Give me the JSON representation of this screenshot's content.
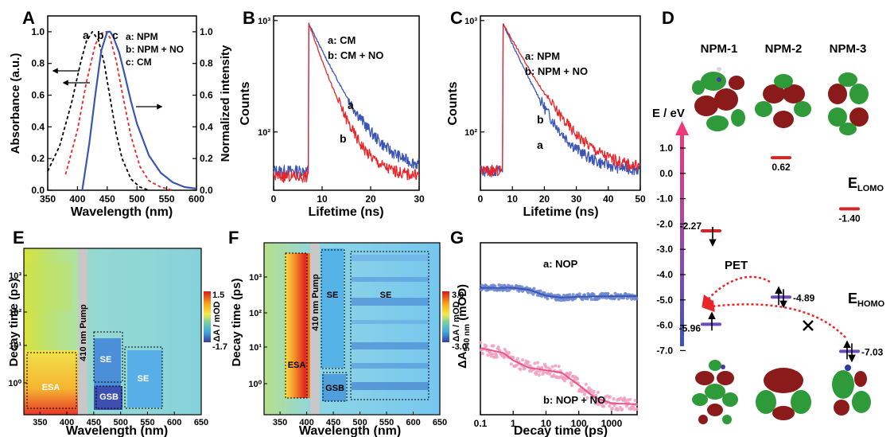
{
  "colors": {
    "blue": "#3b55b5",
    "red": "#e8262a",
    "black": "#000000",
    "pink": "#e8568a",
    "pinkDot": "#f0a0c0",
    "blueDot": "#6a86cf",
    "orbitalRed": "#8b1a1a",
    "orbitalGreen": "#2f9a3a"
  },
  "chart_data": [
    {
      "panel": "A",
      "type": "line",
      "xlabel": "Wavelength (nm)",
      "ylabel": "Absorbance (a.u.)",
      "y2label": "Normalized intensity",
      "xlim": [
        350,
        600
      ],
      "ylim": [
        0,
        1.1
      ],
      "y2lim": [
        0,
        1.1
      ],
      "xticks": [
        "350",
        "400",
        "450",
        "500",
        "550",
        "600"
      ],
      "yticks": [
        "0.0",
        "0.2",
        "0.4",
        "0.6",
        "0.8",
        "1.0"
      ],
      "y2ticks": [
        "0.0",
        "0.2",
        "0.4",
        "0.6",
        "0.8",
        "1.0"
      ],
      "legend": [
        "a: NPM",
        "b: NPM + NO",
        "c: CM"
      ],
      "peak_labels": [
        "a",
        "b",
        "c"
      ],
      "series": [
        {
          "name": "a: NPM",
          "style": "dashed-black",
          "x": [
            350,
            370,
            390,
            405,
            415,
            425,
            435,
            445,
            455,
            465,
            475,
            490,
            505,
            520
          ],
          "y": [
            0.12,
            0.28,
            0.55,
            0.8,
            0.94,
            1.0,
            0.95,
            0.8,
            0.58,
            0.36,
            0.2,
            0.07,
            0.02,
            0.0
          ]
        },
        {
          "name": "b: NPM + NO",
          "style": "dashed-red",
          "x": [
            380,
            400,
            415,
            430,
            440,
            448,
            455,
            465,
            475,
            490,
            505,
            520,
            540,
            560
          ],
          "y": [
            0.1,
            0.38,
            0.68,
            0.92,
            0.99,
            1.0,
            0.96,
            0.82,
            0.62,
            0.34,
            0.15,
            0.06,
            0.02,
            0.0
          ]
        },
        {
          "name": "c: CM",
          "style": "solid-blue",
          "x": [
            408,
            420,
            430,
            440,
            450,
            455,
            460,
            470,
            480,
            490,
            500,
            520,
            540,
            560,
            580,
            600
          ],
          "y": [
            0.0,
            0.3,
            0.6,
            0.88,
            1.0,
            1.0,
            0.97,
            0.87,
            0.72,
            0.56,
            0.42,
            0.22,
            0.11,
            0.05,
            0.02,
            0.01
          ]
        }
      ]
    },
    {
      "panel": "B",
      "type": "line",
      "yscale": "log",
      "xlabel": "Lifetime (ns)",
      "ylabel": "Counts",
      "xlim": [
        0,
        30
      ],
      "ylim": [
        30,
        1100
      ],
      "xticks": [
        "0",
        "10",
        "20",
        "30"
      ],
      "yticks": [
        "10²",
        "10³"
      ],
      "legend": [
        "a: CM",
        "b: CM + NO"
      ],
      "curve_labels": [
        "a",
        "b"
      ],
      "series": [
        {
          "name": "a: CM",
          "color": "blue",
          "baseline": 45,
          "rise": 7.2,
          "peak": 950,
          "tau": 4.6
        },
        {
          "name": "b: CM + NO",
          "color": "red",
          "baseline": 40,
          "rise": 7.2,
          "peak": 950,
          "tau": 3.4
        }
      ]
    },
    {
      "panel": "C",
      "type": "line",
      "yscale": "log",
      "xlabel": "Lifetime (ns)",
      "ylabel": "Counts",
      "xlim": [
        0,
        50
      ],
      "ylim": [
        30,
        1100
      ],
      "xticks": [
        "0",
        "10",
        "20",
        "30",
        "40",
        "50"
      ],
      "yticks": [
        "10²",
        "10³"
      ],
      "legend": [
        "a: NPM",
        "b: NPM + NO"
      ],
      "curve_labels": [
        "b",
        "a"
      ],
      "series": [
        {
          "name": "a: NPM",
          "color": "blue",
          "baseline": 45,
          "rise": 7.0,
          "peak": 950,
          "tau": 6.5
        },
        {
          "name": "b: NPM + NO",
          "color": "red",
          "baseline": 45,
          "rise": 7.0,
          "peak": 950,
          "tau": 8.0
        }
      ]
    },
    {
      "panel": "E",
      "type": "heatmap",
      "xlabel": "Wavelength (nm)",
      "ylabel": "Decay time (ps)",
      "xlim": [
        320,
        650
      ],
      "xticks": [
        "350",
        "400",
        "450",
        "500",
        "550",
        "600",
        "650"
      ],
      "yticks": [
        "10⁰",
        "10¹",
        "10²",
        "10³"
      ],
      "pump_label": "410 nm Pump",
      "colorbar_max": "1.5",
      "colorbar_min": "-1.7",
      "colorbar_label": "ΔA / mOD",
      "regions": [
        "ESA",
        "SE",
        "GSB",
        "SE"
      ]
    },
    {
      "panel": "F",
      "type": "heatmap",
      "xlabel": "Wavelength (nm)",
      "ylabel": "Decay time (ps)",
      "xlim": [
        320,
        650
      ],
      "xticks": [
        "350",
        "400",
        "450",
        "500",
        "550",
        "600",
        "650"
      ],
      "yticks": [
        "10⁰",
        "10¹",
        "10²",
        "10³"
      ],
      "pump_label": "410 nm Pump",
      "colorbar_max": "3.0",
      "colorbar_min": "-3.0",
      "colorbar_label": "ΔA / mOD",
      "regions": [
        "ESA",
        "SE",
        "GSB",
        "SE"
      ]
    },
    {
      "panel": "G",
      "type": "scatter",
      "xscale": "log",
      "xlabel": "Decay time (ps)",
      "ylabel": "ΔA540 nm (mOD)",
      "xlim": [
        0.1,
        6000
      ],
      "xticks": [
        "0.1",
        "1",
        "10",
        "100",
        "1000"
      ],
      "series": [
        {
          "name": "a: NOP",
          "color": "blue",
          "fit": [
            [
              0.1,
              0.62
            ],
            [
              1,
              0.62
            ],
            [
              3,
              0.58
            ],
            [
              10,
              0.46
            ],
            [
              30,
              0.42
            ],
            [
              100,
              0.44
            ],
            [
              1000,
              0.45
            ],
            [
              6000,
              0.45
            ]
          ]
        },
        {
          "name": "b: NOP + NO",
          "color": "pink",
          "fit": [
            [
              0.1,
              -0.6
            ],
            [
              0.5,
              -0.7
            ],
            [
              1,
              -0.85
            ],
            [
              3,
              -1.0
            ],
            [
              10,
              -1.05
            ],
            [
              30,
              -1.1
            ],
            [
              100,
              -1.35
            ],
            [
              300,
              -1.6
            ],
            [
              1000,
              -1.72
            ],
            [
              6000,
              -1.74
            ]
          ]
        }
      ]
    },
    {
      "panel": "D",
      "type": "diagram",
      "axis_label": "E / eV",
      "yticks": [
        "1.0",
        "0.0",
        "-1.0",
        "-2.0",
        "-3.0",
        "-4.0",
        "-5.0",
        "-6.0",
        "-7.0"
      ],
      "yvalues": [
        1,
        0,
        -1,
        -2,
        -3,
        -4,
        -5,
        -6,
        -7
      ],
      "columns": [
        "NPM-1",
        "NPM-2",
        "NPM-3"
      ],
      "levels": [
        {
          "value": "-2.27",
          "energy": -2.27,
          "color": "red",
          "column": "NPM-1"
        },
        {
          "value": "0.62",
          "energy": 0.62,
          "color": "red",
          "column": "NPM-2"
        },
        {
          "value": "-1.40",
          "energy": -1.4,
          "color": "red",
          "column": "NPM-3"
        },
        {
          "value": "-5.96",
          "energy": -5.96,
          "color": "purple",
          "column": "NPM-1"
        },
        {
          "value": "-4.89",
          "energy": -4.89,
          "color": "purple",
          "column": "NPM-2"
        },
        {
          "value": "-7.03",
          "energy": -7.03,
          "color": "purple",
          "column": "NPM-3"
        }
      ],
      "pet_label": "PET",
      "e_lomo": {
        "main": "E",
        "sub": "LOMO"
      },
      "e_homo": {
        "main": "E",
        "sub": "HOMO"
      }
    }
  ],
  "panel_letters": [
    "A",
    "B",
    "C",
    "D",
    "E",
    "F",
    "G"
  ],
  "text": {
    "a_leg1": "a: NPM",
    "a_leg2": "b: NPM + NO",
    "a_leg3": "c: CM",
    "a_pa": "a",
    "a_pb": "b",
    "a_pc": "c",
    "a_xlabel": "Wavelength (nm)",
    "a_ylabel": "Absorbance (a.u.)",
    "a_y2label": "Normalized intensity",
    "b_leg1": "a: CM",
    "b_leg2": "b: CM + NO",
    "b_la": "a",
    "b_lb": "b",
    "b_xlabel": "Lifetime (ns)",
    "b_ylabel": "Counts",
    "c_leg1": "a: NPM",
    "c_leg2": "b: NPM + NO",
    "c_lb": "b",
    "c_la": "a",
    "c_xlabel": "Lifetime (ns)",
    "c_ylabel": "Counts",
    "e_xlabel": "Wavelength (nm)",
    "e_ylabel": "Decay time (ps)",
    "e_pump": "410 nm Pump",
    "e_esa": "ESA",
    "e_se1": "SE",
    "e_gsb": "GSB",
    "e_se2": "SE",
    "e_cbmax": "1.5",
    "e_cbmin": "-1.7",
    "e_cblabel": "ΔA / mOD",
    "f_xlabel": "Wavelength (nm)",
    "f_ylabel": "Decay time (ps)",
    "f_pump": "410 nm Pump",
    "f_esa": "ESA",
    "f_se1": "SE",
    "f_gsb": "GSB",
    "f_se2": "SE",
    "f_cbmax": "3.0",
    "f_cbmin": "-3.0",
    "f_cblabel": "ΔA / mOD",
    "g_xlabel": "Decay time (ps)",
    "g_leg1": "a: NOP",
    "g_leg2": "b: NOP + NO",
    "g_ylabel_pre": "ΔA",
    "g_ylabel_sub": "540 nm",
    "g_ylabel_post": " (mOD)",
    "d_axis": "E / eV",
    "d_col1": "NPM-1",
    "d_col2": "NPM-2",
    "d_col3": "NPM-3",
    "d_pet": "PET",
    "d_lomo_e": "E",
    "d_lomo_sub": "LOMO",
    "d_homo_e": "E",
    "d_homo_sub": "HOMO",
    "d_v1": "-2.27",
    "d_v2": "0.62",
    "d_v3": "-1.40",
    "d_v4": "-5.96",
    "d_v5": "-4.89",
    "d_v6": "-7.03"
  }
}
